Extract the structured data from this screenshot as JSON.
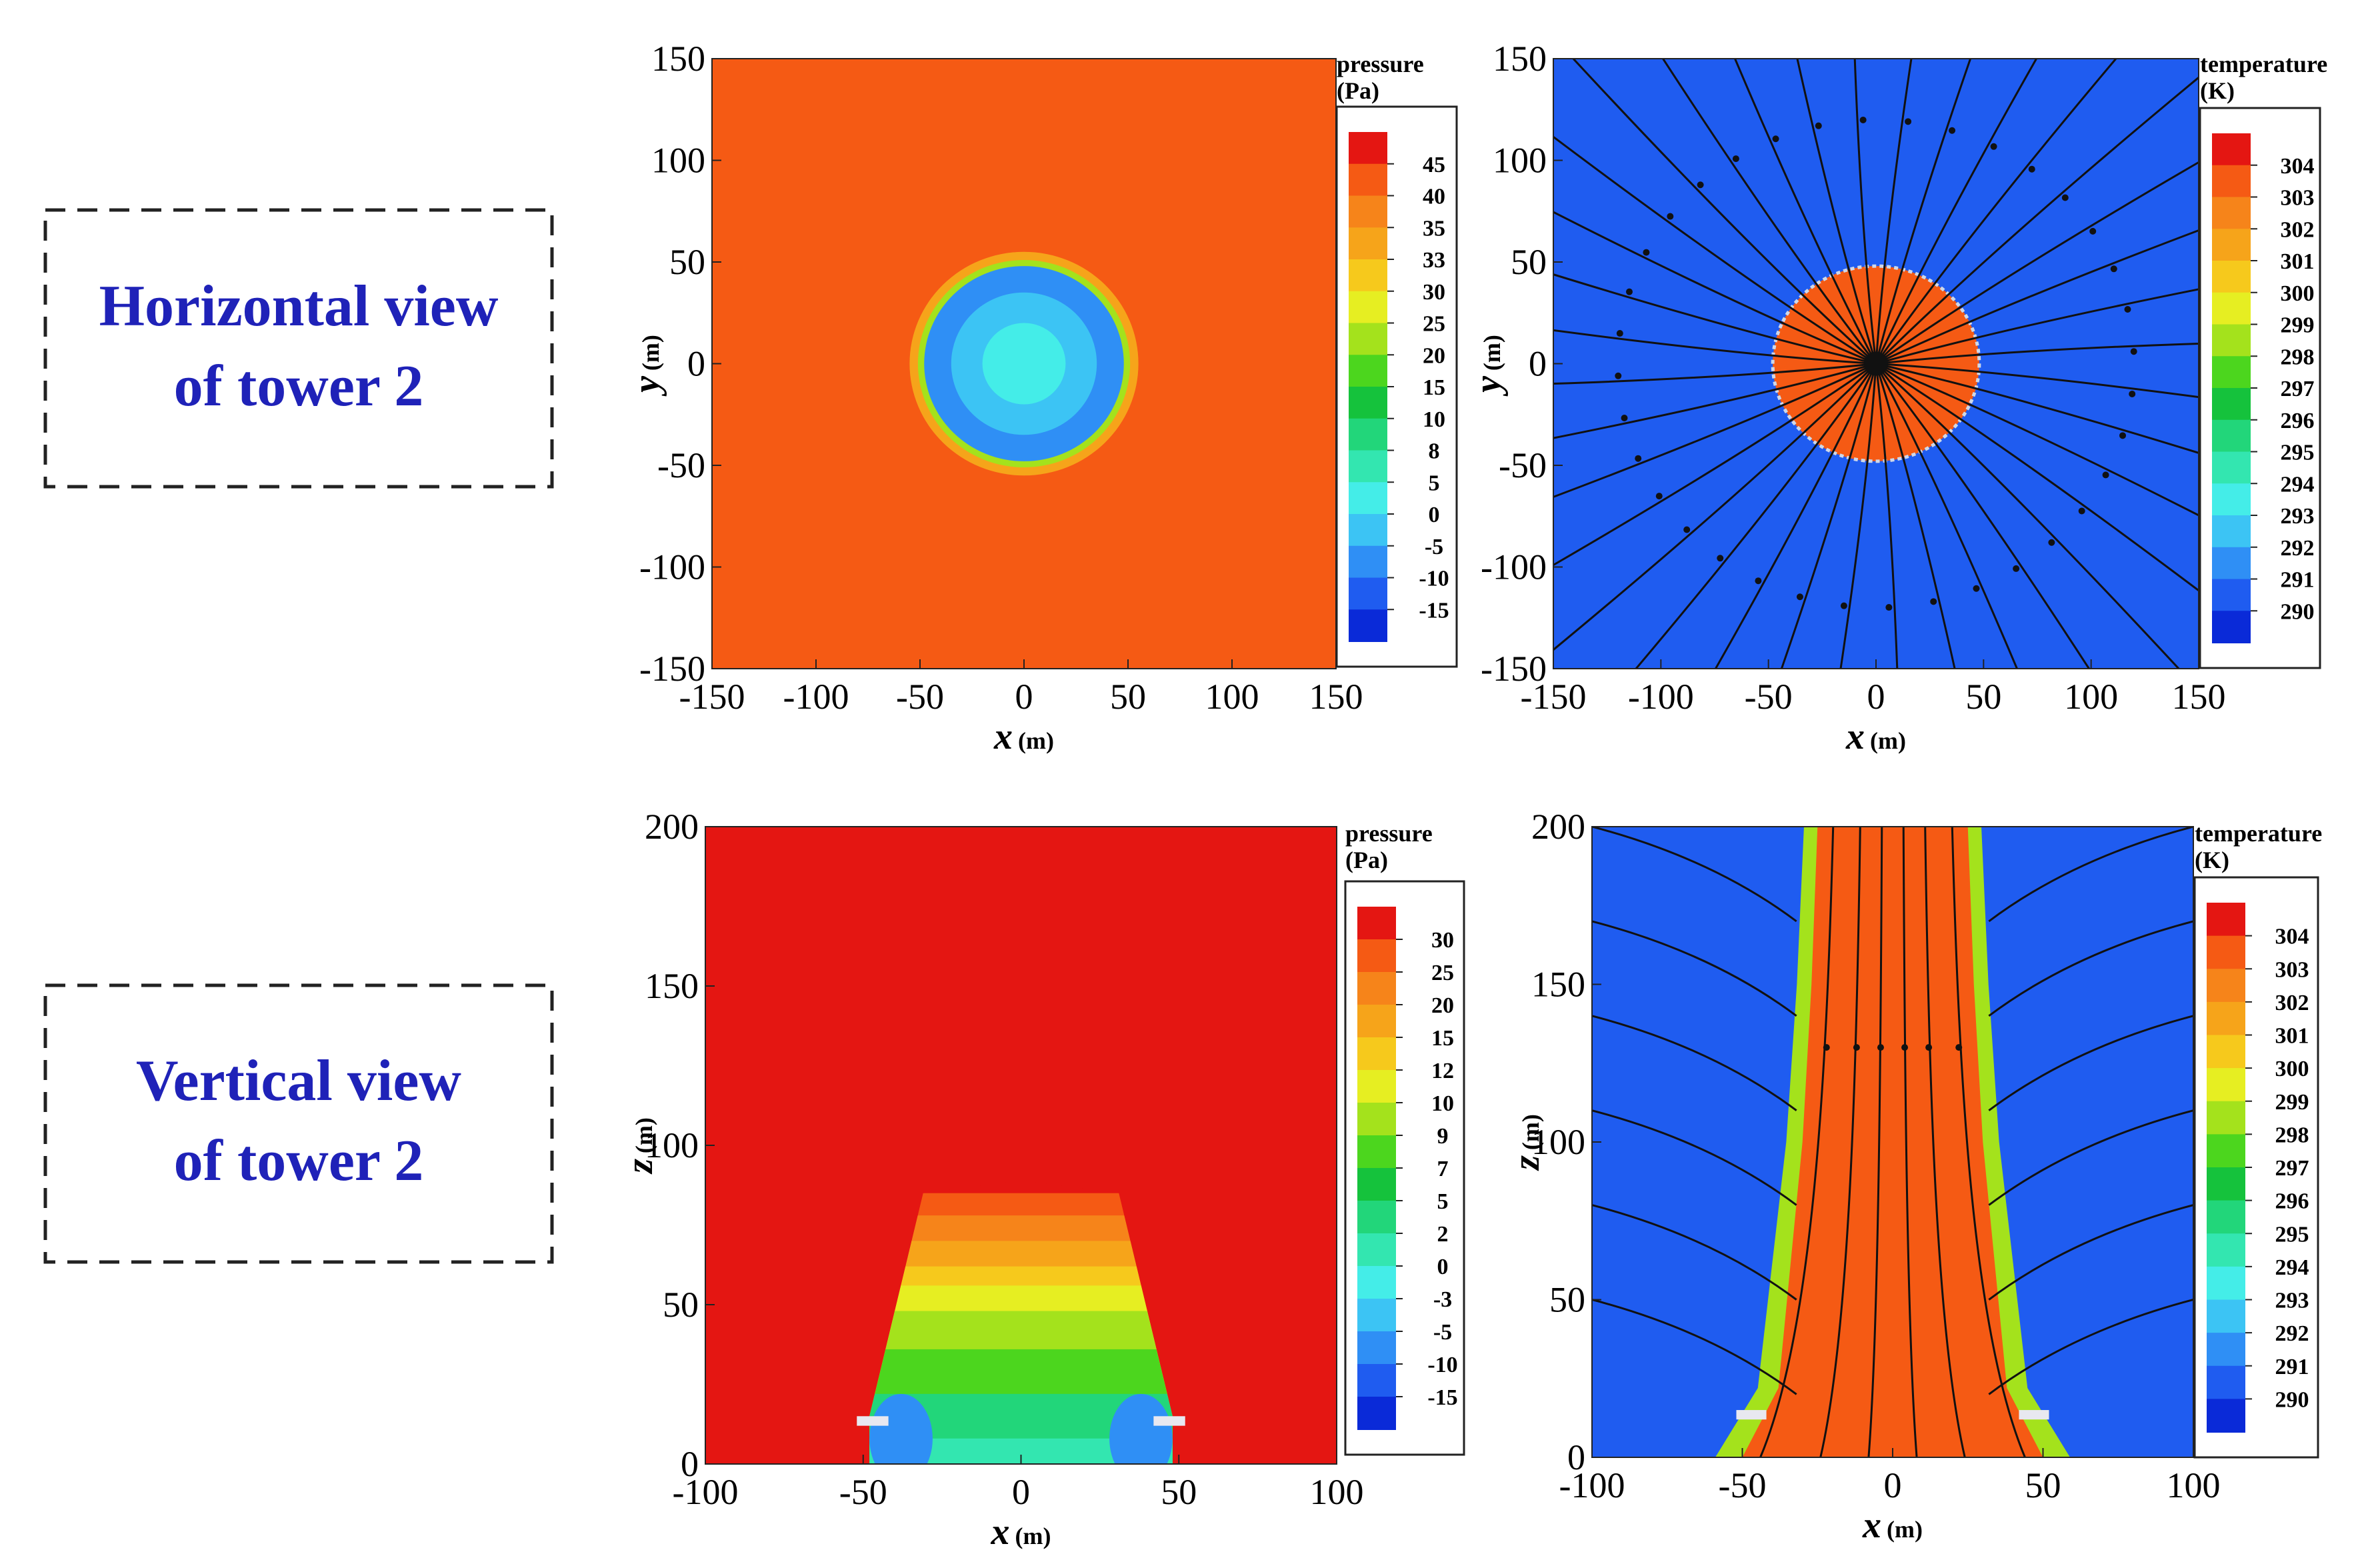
{
  "colors": {
    "label_blue": "#1f22b8",
    "pressure_ramp": [
      "#0a2ad8",
      "#1f5cf0",
      "#2f8ff5",
      "#3cc4f4",
      "#44ede8",
      "#33e6b0",
      "#22d67a",
      "#15c23c",
      "#4cd61e",
      "#a4e21c",
      "#e6ee22",
      "#f6c91c",
      "#f6a41a",
      "#f6841a",
      "#f55a14",
      "#e41612"
    ],
    "temperature_ramp": [
      "#0a2ad8",
      "#1f5cf0",
      "#2f8ff5",
      "#3cc4f4",
      "#44ede8",
      "#33e6b0",
      "#22d67a",
      "#15c23c",
      "#4cd61e",
      "#a4e21c",
      "#e6ee22",
      "#f6c91c",
      "#f6a41a",
      "#f6841a",
      "#f55a14",
      "#e41612"
    ]
  },
  "row_labels": {
    "horizontal": [
      "Horizontal view",
      "of tower 2"
    ],
    "vertical": [
      "Vertical view",
      "of tower 2"
    ]
  },
  "chart_data": [
    {
      "id": "h-pressure",
      "type": "heatmap",
      "title": "",
      "xlabel": "x",
      "xunit": "(m)",
      "ylabel": "y",
      "yunit": "(m)",
      "xlim": [
        -150,
        150
      ],
      "ylim": [
        -150,
        150
      ],
      "xticks": [
        -150,
        -100,
        -50,
        0,
        50,
        100,
        150
      ],
      "yticks": [
        -150,
        -100,
        -50,
        0,
        50,
        100,
        150
      ],
      "legend": {
        "title": [
          "pressure",
          "(Pa)"
        ],
        "labels": [
          "45",
          "40",
          "35",
          "33",
          "30",
          "25",
          "20",
          "15",
          "10",
          "8",
          "5",
          "0",
          "-5",
          "-10",
          "-15"
        ],
        "placement": "right"
      },
      "field": {
        "background_value": 40,
        "disk": {
          "center": [
            0,
            0
          ],
          "radius_m": 55,
          "rings": [
            [
              55,
              33
            ],
            [
              51,
              20
            ],
            [
              48,
              -10
            ],
            [
              35,
              -5
            ],
            [
              20,
              0
            ]
          ]
        }
      }
    },
    {
      "id": "h-temperature",
      "type": "heatmap",
      "title": "",
      "xlabel": "x",
      "xunit": "(m)",
      "ylabel": "y",
      "yunit": "(m)",
      "xlim": [
        -150,
        150
      ],
      "ylim": [
        -150,
        150
      ],
      "xticks": [
        -150,
        -100,
        -50,
        0,
        50,
        100,
        150
      ],
      "yticks": [
        -150,
        -100,
        -50,
        0,
        50,
        100,
        150
      ],
      "legend": {
        "title": [
          "temperature",
          "(K)"
        ],
        "labels": [
          "304",
          "303",
          "302",
          "301",
          "300",
          "299",
          "298",
          "297",
          "296",
          "295",
          "294",
          "293",
          "292",
          "291",
          "290"
        ],
        "placement": "right"
      },
      "field": {
        "background_value": 290.5,
        "disk": {
          "center": [
            0,
            0
          ],
          "radius_m": 48,
          "value": 303.5
        },
        "streamlines": "radial, converging to centre",
        "streamline_count": 36
      }
    },
    {
      "id": "v-pressure",
      "type": "heatmap",
      "title": "",
      "xlabel": "x",
      "xunit": "(m)",
      "ylabel": "z",
      "yunit": "(m)",
      "xlim": [
        -100,
        100
      ],
      "ylim": [
        0,
        200
      ],
      "xticks": [
        -100,
        -50,
        0,
        50,
        100
      ],
      "yticks": [
        0,
        50,
        100,
        150,
        200
      ],
      "legend": {
        "title": [
          "pressure",
          "(Pa)"
        ],
        "labels": [
          "30",
          "25",
          "20",
          "15",
          "12",
          "10",
          "9",
          "7",
          "5",
          "2",
          "0",
          "-3",
          "-5",
          "-10",
          "-15"
        ],
        "placement": "right"
      },
      "field": {
        "background_value": 30,
        "tower_outline_m": [
          [
            -48,
            0
          ],
          [
            -48,
            15
          ],
          [
            -31,
            85
          ],
          [
            0,
            89
          ],
          [
            31,
            85
          ],
          [
            48,
            15
          ],
          [
            48,
            0
          ]
        ],
        "layers": [
          [
            85,
            25
          ],
          [
            78,
            20
          ],
          [
            70,
            15
          ],
          [
            62,
            12
          ],
          [
            56,
            10
          ],
          [
            48,
            9
          ],
          [
            36,
            7
          ],
          [
            22,
            2
          ],
          [
            8,
            0
          ]
        ]
      }
    },
    {
      "id": "v-temperature",
      "type": "heatmap",
      "title": "",
      "xlabel": "x",
      "xunit": "(m)",
      "ylabel": "z",
      "yunit": "(m)",
      "xlim": [
        -100,
        100
      ],
      "ylim": [
        0,
        200
      ],
      "xticks": [
        -100,
        -50,
        0,
        50,
        100
      ],
      "yticks": [
        0,
        50,
        100,
        150,
        200
      ],
      "legend": {
        "title": [
          "temperature",
          "(K)"
        ],
        "labels": [
          "304",
          "303",
          "302",
          "301",
          "300",
          "299",
          "298",
          "297",
          "296",
          "295",
          "294",
          "293",
          "292",
          "291",
          "290"
        ],
        "placement": "right"
      },
      "field": {
        "background_value": 290.5,
        "plume_value": 303.5,
        "plume_outline_m": [
          [
            -50,
            0
          ],
          [
            -38,
            22
          ],
          [
            -30,
            100
          ],
          [
            -27,
            150
          ],
          [
            -25,
            200
          ],
          [
            25,
            200
          ],
          [
            27,
            150
          ],
          [
            30,
            100
          ],
          [
            38,
            22
          ],
          [
            50,
            0
          ]
        ],
        "streamlines": "upward inside plume, entraining from sides"
      }
    }
  ]
}
